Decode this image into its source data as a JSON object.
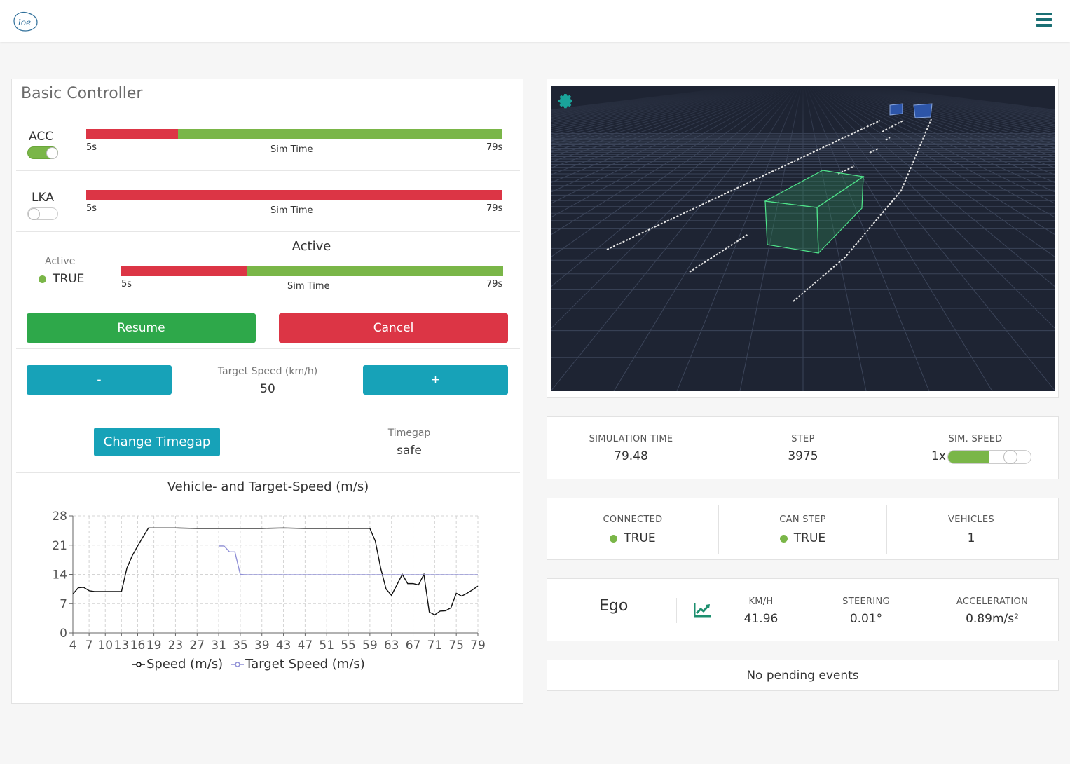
{
  "header": {
    "logo_text": "loe",
    "menu_icon": "hamburger-icon"
  },
  "controller": {
    "title": "Basic Controller",
    "acc": {
      "label": "ACC",
      "enabled": true,
      "tl_min": "5s",
      "tl_label": "Sim Time",
      "tl_max": "79s",
      "active_fraction": 0.78
    },
    "lka": {
      "label": "LKA",
      "enabled": false,
      "tl_min": "5s",
      "tl_label": "Sim Time",
      "tl_max": "79s",
      "active_fraction": 0.0
    },
    "active": {
      "title": "Active",
      "caption": "Active",
      "value": "TRUE",
      "tl_min": "5s",
      "tl_label": "Sim Time",
      "tl_max": "79s",
      "active_fraction": 0.67
    },
    "resume_label": "Resume",
    "cancel_label": "Cancel",
    "minus_label": "-",
    "plus_label": "+",
    "target_speed_caption": "Target Speed (km/h)",
    "target_speed_value": "50",
    "change_timegap_label": "Change Timegap",
    "timegap_caption": "Timegap",
    "timegap_value": "safe"
  },
  "chart_data": {
    "type": "line",
    "title": "Vehicle- and Target-Speed (m/s)",
    "x_ticks": [
      "4",
      "7",
      "10",
      "13",
      "16",
      "19",
      "23",
      "27",
      "31",
      "35",
      "39",
      "43",
      "47",
      "51",
      "55",
      "59",
      "63",
      "67",
      "71",
      "75",
      "79"
    ],
    "y_ticks": [
      "0",
      "7",
      "14",
      "21",
      "28"
    ],
    "xlim": [
      4,
      79
    ],
    "ylim": [
      0,
      28
    ],
    "grid": true,
    "legend": "bottom",
    "series": [
      {
        "name": "Speed (m/s)",
        "color": "#111111",
        "x": [
          4,
          5,
          6,
          7,
          8,
          9,
          10,
          11,
          12,
          13,
          14,
          15,
          16,
          17,
          18,
          19,
          20,
          23,
          27,
          31,
          35,
          39,
          43,
          47,
          51,
          55,
          59,
          60,
          61,
          62,
          63,
          64,
          65,
          66,
          67,
          68,
          69,
          70,
          71,
          72,
          73,
          74,
          75,
          76,
          77,
          78,
          79
        ],
        "values": [
          9.3,
          10.8,
          10.9,
          10.1,
          9.9,
          9.9,
          9.9,
          9.9,
          9.9,
          9.9,
          15.5,
          18.5,
          20.8,
          23.0,
          25.1,
          25.1,
          25.1,
          25.1,
          25.0,
          25.0,
          25.0,
          25.0,
          25.1,
          25.0,
          25.0,
          25.0,
          25.0,
          22.0,
          15.5,
          10.5,
          9.0,
          11.5,
          14.0,
          11.8,
          11.8,
          11.5,
          14.0,
          5.0,
          4.3,
          5.2,
          5.3,
          6.0,
          9.5,
          8.8,
          9.5,
          10.3,
          11.2
        ]
      },
      {
        "name": "Target Speed (m/s)",
        "color": "#8f8fd6",
        "x": [
          31,
          32,
          33,
          34,
          35,
          36,
          39,
          43,
          47,
          51,
          55,
          59,
          63,
          67,
          71,
          75,
          79
        ],
        "values": [
          20.8,
          20.8,
          19.4,
          19.4,
          14.0,
          13.9,
          13.9,
          13.9,
          13.9,
          13.9,
          13.9,
          13.9,
          13.9,
          13.9,
          13.9,
          13.9,
          13.9
        ]
      }
    ]
  },
  "viewport": {
    "settings_icon": "gear-icon"
  },
  "sim": {
    "time_caption": "SIMULATION TIME",
    "time_value": "79.48",
    "step_caption": "STEP",
    "step_value": "3975",
    "speed_caption": "SIM. SPEED",
    "speed_value": "1x",
    "speed_fraction": 0.5
  },
  "conn": {
    "connected_caption": "CONNECTED",
    "connected_value": "TRUE",
    "canstep_caption": "CAN STEP",
    "canstep_value": "TRUE",
    "vehicles_caption": "VEHICLES",
    "vehicles_value": "1"
  },
  "ego": {
    "name": "Ego",
    "chart_icon": "line-chart-icon",
    "kmh_caption": "KM/H",
    "kmh_value": "41.96",
    "steer_caption": "STEERING",
    "steer_value": "0.01°",
    "accel_caption": "ACCELERATION",
    "accel_value": "0.89m/s²"
  },
  "events": {
    "message": "No pending events"
  },
  "colors": {
    "green": "#7ab648",
    "red": "#dc3545",
    "teal": "#17a2b8",
    "button_green": "#2ea84a",
    "scene_bg": "#1e2433"
  }
}
